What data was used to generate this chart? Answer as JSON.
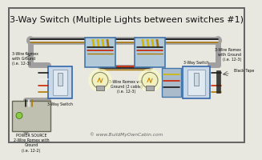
{
  "title": "3-Way Switch (Multiple Lights between switches #1)",
  "bg_color": "#e8e8e0",
  "border_color": "#666666",
  "title_fontsize": 8.0,
  "title_color": "#111111",
  "watermark": "© www.BuildMyOwnCabin.com",
  "watermark_color": "#666666",
  "watermark_fontsize": 4.2,
  "labels": {
    "left_romex": "3-Wire Romex\nwith Ground\n(i.e. 12-3)",
    "center_romex": "3-Wire Romex with\nGround (2 cable)\n(i.e. 12-3)",
    "right_romex": "3-Wire Romex\nwith Ground\n(i.e. 12-3)",
    "power_source": "POWER SOURCE\n2-Wire Romex with\nGround\n(i.e. 12-2)",
    "left_switch": "3-Way Switch",
    "right_switch": "3-Way Switch",
    "black_tape": "Black Tape"
  },
  "wire": {
    "gray": "#a0a0a0",
    "black": "#1a1a1a",
    "white": "#eeeeee",
    "red": "#cc2200",
    "yellow": "#d4b800",
    "bare": "#b07800"
  },
  "bulb_glow": "#ffffc0",
  "bulb_glass": "#f0f0c0",
  "bulb_base": "#aaaaaa",
  "jbox_fill": "#b0c8d8",
  "jbox_edge": "#4477aa",
  "sw_fill": "#c8d8e8",
  "sw_edge": "#3366aa",
  "ps_fill": "#c0c0b0",
  "ps_edge": "#666655",
  "tape_fill": "#bbbbbb",
  "cap_yellow": "#d4b800",
  "cap_green": "#336633"
}
